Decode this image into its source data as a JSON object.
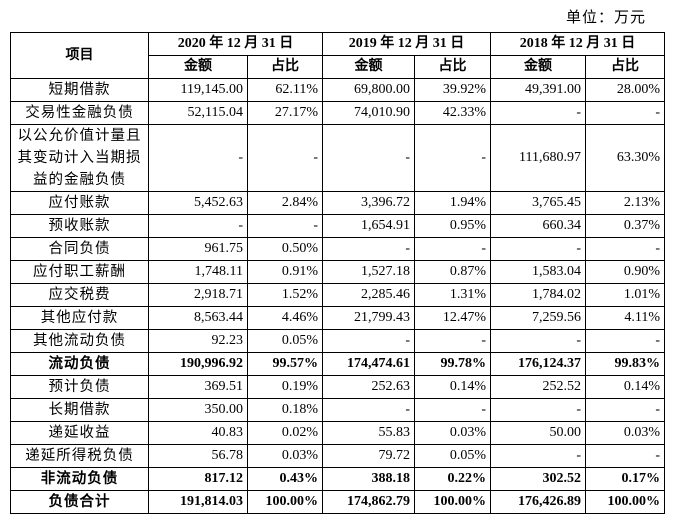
{
  "unit": "单位：万元",
  "table": {
    "header": {
      "item": "项目",
      "periods": [
        "2020 年 12 月 31 日",
        "2019 年 12 月 31 日",
        "2018 年 12 月 31 日"
      ],
      "sub": [
        [
          "金额",
          "占比"
        ],
        [
          "金额",
          "占比"
        ],
        [
          "金额",
          "占比"
        ]
      ]
    },
    "rows": [
      {
        "cells": [
          "短期借款",
          "119,145.00",
          "62.11%",
          "69,800.00",
          "39.92%",
          "49,391.00",
          "28.00%"
        ]
      },
      {
        "cells": [
          "交易性金融负债",
          "52,115.04",
          "27.17%",
          "74,010.90",
          "42.33%",
          "-",
          "-"
        ]
      },
      {
        "cells": [
          "以公允价值计量且其变动计入当期损益的金融负债",
          "-",
          "-",
          "-",
          "-",
          "111,680.97",
          "63.30%"
        ]
      },
      {
        "cells": [
          "应付账款",
          "5,452.63",
          "2.84%",
          "3,396.72",
          "1.94%",
          "3,765.45",
          "2.13%"
        ]
      },
      {
        "cells": [
          "预收账款",
          "-",
          "-",
          "1,654.91",
          "0.95%",
          "660.34",
          "0.37%"
        ]
      },
      {
        "cells": [
          "合同负债",
          "961.75",
          "0.50%",
          "-",
          "-",
          "-",
          "-"
        ]
      },
      {
        "cells": [
          "应付职工薪酬",
          "1,748.11",
          "0.91%",
          "1,527.18",
          "0.87%",
          "1,583.04",
          "0.90%"
        ]
      },
      {
        "cells": [
          "应交税费",
          "2,918.71",
          "1.52%",
          "2,285.46",
          "1.31%",
          "1,784.02",
          "1.01%"
        ]
      },
      {
        "cells": [
          "其他应付款",
          "8,563.44",
          "4.46%",
          "21,799.43",
          "12.47%",
          "7,259.56",
          "4.11%"
        ]
      },
      {
        "cells": [
          "其他流动负债",
          "92.23",
          "0.05%",
          "-",
          "-",
          "-",
          "-"
        ]
      },
      {
        "cells": [
          "流动负债",
          "190,996.92",
          "99.57%",
          "174,474.61",
          "99.78%",
          "176,124.37",
          "99.83%"
        ],
        "bold": true
      },
      {
        "cells": [
          "预计负债",
          "369.51",
          "0.19%",
          "252.63",
          "0.14%",
          "252.52",
          "0.14%"
        ]
      },
      {
        "cells": [
          "长期借款",
          "350.00",
          "0.18%",
          "-",
          "-",
          "-",
          "-"
        ]
      },
      {
        "cells": [
          "递延收益",
          "40.83",
          "0.02%",
          "55.83",
          "0.03%",
          "50.00",
          "0.03%"
        ]
      },
      {
        "cells": [
          "递延所得税负债",
          "56.78",
          "0.03%",
          "79.72",
          "0.05%",
          "-",
          "-"
        ]
      },
      {
        "cells": [
          "非流动负债",
          "817.12",
          "0.43%",
          "388.18",
          "0.22%",
          "302.52",
          "0.17%"
        ],
        "bold": true
      },
      {
        "cells": [
          "负债合计",
          "191,814.03",
          "100.00%",
          "174,862.79",
          "100.00%",
          "176,426.89",
          "100.00%"
        ],
        "bold": true
      }
    ]
  }
}
